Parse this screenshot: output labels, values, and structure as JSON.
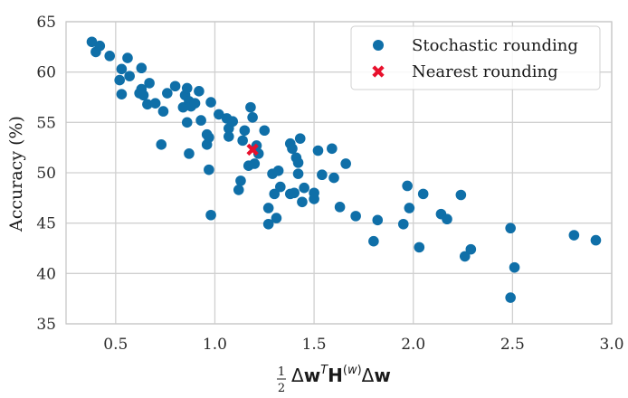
{
  "chart_data": {
    "type": "scatter",
    "xlabel": "",
    "ylabel": "Accuracy (%)",
    "xlim": [
      0.25,
      3.0
    ],
    "ylim": [
      35,
      65
    ],
    "xticks": [
      0.5,
      1.0,
      1.5,
      2.0,
      2.5,
      3.0
    ],
    "xtick_labels": [
      "0.5",
      "1.0",
      "1.5",
      "2.0",
      "2.5",
      "3.0"
    ],
    "yticks": [
      35,
      40,
      45,
      50,
      55,
      60,
      65
    ],
    "ytick_labels": [
      "35",
      "40",
      "45",
      "50",
      "55",
      "60",
      "65"
    ],
    "grid": true,
    "legend_position": "top-right",
    "colors": {
      "stochastic": "#0f6fa8",
      "nearest": "#e8112d",
      "grid": "#d0d0d0",
      "frame": "#c8c8c8"
    },
    "series": [
      {
        "name": "Stochastic rounding",
        "marker": "circle",
        "points": [
          [
            0.38,
            63.0
          ],
          [
            0.4,
            62.0
          ],
          [
            0.42,
            62.6
          ],
          [
            0.47,
            61.6
          ],
          [
            0.52,
            59.2
          ],
          [
            0.53,
            57.8
          ],
          [
            0.53,
            60.3
          ],
          [
            0.56,
            61.4
          ],
          [
            0.57,
            59.6
          ],
          [
            0.62,
            57.9
          ],
          [
            0.63,
            60.4
          ],
          [
            0.63,
            58.3
          ],
          [
            0.64,
            57.7
          ],
          [
            0.66,
            56.8
          ],
          [
            0.67,
            58.9
          ],
          [
            0.7,
            56.9
          ],
          [
            0.73,
            52.8
          ],
          [
            0.74,
            56.1
          ],
          [
            0.76,
            57.9
          ],
          [
            0.8,
            58.6
          ],
          [
            0.84,
            56.5
          ],
          [
            0.85,
            57.7
          ],
          [
            0.86,
            58.4
          ],
          [
            0.86,
            55.0
          ],
          [
            0.87,
            57.1
          ],
          [
            0.87,
            51.9
          ],
          [
            0.88,
            56.6
          ],
          [
            0.9,
            56.9
          ],
          [
            0.92,
            58.1
          ],
          [
            0.93,
            55.2
          ],
          [
            0.96,
            53.8
          ],
          [
            0.96,
            52.8
          ],
          [
            0.97,
            53.5
          ],
          [
            0.97,
            50.3
          ],
          [
            0.98,
            45.8
          ],
          [
            0.98,
            57.0
          ],
          [
            1.02,
            55.8
          ],
          [
            1.06,
            55.4
          ],
          [
            1.07,
            54.4
          ],
          [
            1.07,
            53.6
          ],
          [
            1.09,
            55.1
          ],
          [
            1.12,
            48.3
          ],
          [
            1.13,
            49.2
          ],
          [
            1.14,
            53.2
          ],
          [
            1.15,
            54.2
          ],
          [
            1.17,
            50.7
          ],
          [
            1.18,
            56.5
          ],
          [
            1.19,
            55.5
          ],
          [
            1.2,
            50.9
          ],
          [
            1.21,
            52.7
          ],
          [
            1.22,
            51.9
          ],
          [
            1.25,
            54.2
          ],
          [
            1.27,
            46.5
          ],
          [
            1.27,
            44.9
          ],
          [
            1.29,
            49.9
          ],
          [
            1.3,
            47.9
          ],
          [
            1.31,
            45.5
          ],
          [
            1.32,
            50.2
          ],
          [
            1.33,
            48.6
          ],
          [
            1.38,
            52.9
          ],
          [
            1.38,
            47.9
          ],
          [
            1.39,
            52.4
          ],
          [
            1.4,
            48.0
          ],
          [
            1.41,
            51.5
          ],
          [
            1.42,
            51.0
          ],
          [
            1.42,
            49.9
          ],
          [
            1.43,
            53.4
          ],
          [
            1.44,
            47.1
          ],
          [
            1.45,
            48.5
          ],
          [
            1.5,
            48.0
          ],
          [
            1.5,
            47.4
          ],
          [
            1.52,
            52.2
          ],
          [
            1.54,
            49.8
          ],
          [
            1.59,
            52.4
          ],
          [
            1.6,
            49.5
          ],
          [
            1.63,
            46.6
          ],
          [
            1.66,
            50.9
          ],
          [
            1.71,
            45.7
          ],
          [
            1.8,
            43.2
          ],
          [
            1.82,
            45.3
          ],
          [
            1.95,
            44.9
          ],
          [
            1.97,
            48.7
          ],
          [
            1.98,
            46.5
          ],
          [
            2.03,
            42.6
          ],
          [
            2.05,
            47.9
          ],
          [
            2.14,
            45.9
          ],
          [
            2.17,
            45.4
          ],
          [
            2.24,
            47.8
          ],
          [
            2.26,
            41.7
          ],
          [
            2.29,
            42.4
          ],
          [
            2.49,
            37.6
          ],
          [
            2.49,
            44.5
          ],
          [
            2.51,
            40.6
          ],
          [
            2.81,
            43.8
          ],
          [
            2.92,
            43.3
          ]
        ]
      },
      {
        "name": "Nearest rounding",
        "marker": "x",
        "points": [
          [
            1.19,
            52.3
          ]
        ]
      }
    ]
  }
}
